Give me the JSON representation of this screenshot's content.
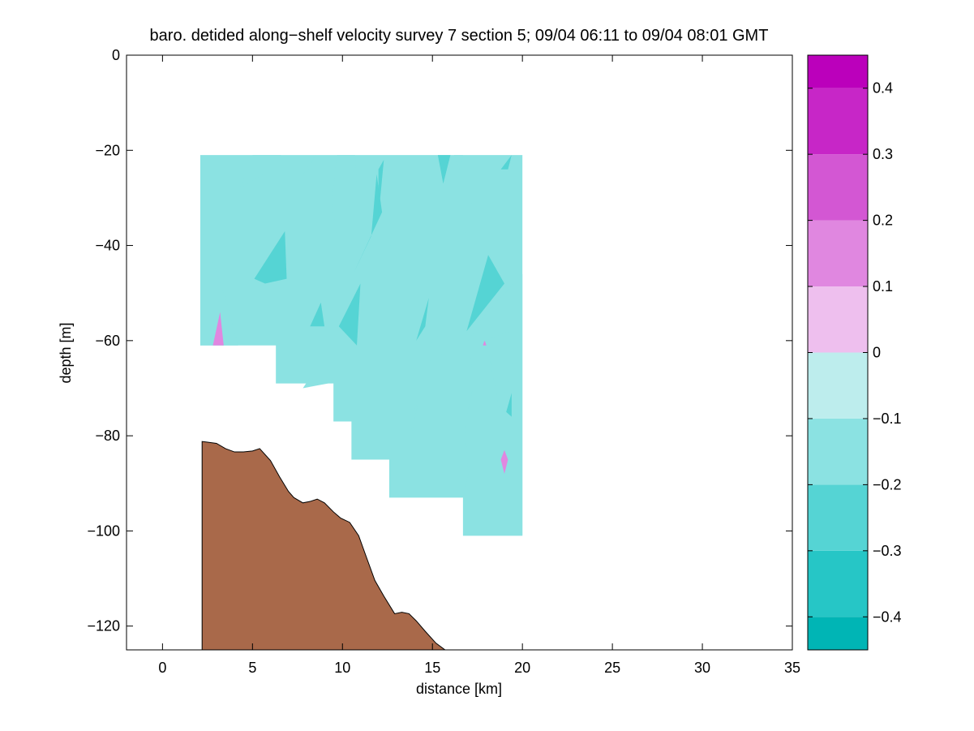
{
  "chart_data": {
    "type": "contour",
    "title": "baro. detided along−shelf velocity survey 7 section 5; 09/04 06:11 to 09/04 08:01 GMT",
    "xlabel": "distance [km]",
    "ylabel": "depth [m]",
    "xlim": [
      -2,
      35
    ],
    "ylim": [
      -125,
      0
    ],
    "xticks": [
      0,
      5,
      10,
      15,
      20,
      25,
      30,
      35
    ],
    "yticks": [
      0,
      -20,
      -40,
      -60,
      -80,
      -100,
      -120
    ],
    "grid": false,
    "colorbar": {
      "range": [
        -0.45,
        0.45
      ],
      "levels": [
        -0.45,
        -0.4,
        -0.3,
        -0.2,
        -0.1,
        0,
        0.1,
        0.2,
        0.3,
        0.4,
        0.45
      ],
      "colors": [
        "#00b5b5",
        "#26c6c6",
        "#55d4d4",
        "#8be2e2",
        "#bdeded",
        "#eebfee",
        "#e087e0",
        "#d357d3",
        "#c726c7",
        "#bb00bb"
      ],
      "ticks": [
        -0.4,
        -0.3,
        -0.2,
        -0.1,
        0,
        0.1,
        0.2,
        0.3,
        0.4
      ],
      "tick_labels": [
        "−0.4",
        "−0.3",
        "−0.2",
        "−0.1",
        "0",
        "0.1",
        "0.2",
        "0.3",
        "0.4"
      ]
    },
    "data_region": {
      "top_depth": -21,
      "bottom_profile": [
        [
          2.1,
          -61
        ],
        [
          6.3,
          -61
        ],
        [
          6.3,
          -69
        ],
        [
          9.5,
          -69
        ],
        [
          9.5,
          -77
        ],
        [
          10.5,
          -77
        ],
        [
          10.5,
          -85
        ],
        [
          12.6,
          -85
        ],
        [
          12.6,
          -93
        ],
        [
          16.7,
          -93
        ],
        [
          16.7,
          -101
        ],
        [
          20.0,
          -101
        ],
        [
          20.0,
          -21
        ]
      ]
    },
    "contour_patches": [
      {
        "level": -0.1,
        "polygon": [
          [
            2.1,
            -61
          ],
          [
            2.1,
            -36
          ],
          [
            3.5,
            -51
          ],
          [
            4.2,
            -61
          ]
        ]
      },
      {
        "level": -0.1,
        "polygon": [
          [
            16.7,
            -101
          ],
          [
            16.7,
            -93
          ],
          [
            17.0,
            -88
          ],
          [
            16.8,
            -78
          ],
          [
            17.3,
            -69
          ],
          [
            17.0,
            -60
          ],
          [
            17.8,
            -55
          ],
          [
            20.0,
            -46
          ],
          [
            20.0,
            -101
          ]
        ]
      },
      {
        "level": -0.1,
        "polygon": [
          [
            5.0,
            -21
          ],
          [
            6.6,
            -21
          ],
          [
            5.6,
            -25
          ],
          [
            4.3,
            -28
          ]
        ]
      },
      {
        "level": -0.1,
        "polygon": [
          [
            9.7,
            -21
          ],
          [
            10.7,
            -21
          ],
          [
            10.8,
            -28
          ],
          [
            9.7,
            -38
          ],
          [
            9.4,
            -31
          ]
        ]
      },
      {
        "level": -0.1,
        "polygon": [
          [
            13.0,
            -35
          ],
          [
            13.8,
            -37
          ],
          [
            13.0,
            -41
          ],
          [
            12.0,
            -38
          ]
        ]
      },
      {
        "level": -0.1,
        "polygon": [
          [
            7.8,
            -25
          ],
          [
            8.5,
            -21
          ],
          [
            8.1,
            -24
          ]
        ]
      },
      {
        "level": -0.1,
        "polygon": [
          [
            16.8,
            -38
          ],
          [
            17.2,
            -31
          ],
          [
            16.5,
            -36
          ]
        ]
      },
      {
        "level": -0.1,
        "polygon": [
          [
            16.2,
            -21
          ],
          [
            16.7,
            -21
          ],
          [
            16.5,
            -24
          ]
        ]
      },
      {
        "level": -0.1,
        "polygon": [
          [
            18.0,
            -60
          ],
          [
            19.2,
            -58
          ],
          [
            19.5,
            -66
          ],
          [
            18.7,
            -74
          ]
        ]
      },
      {
        "level": -0.1,
        "polygon": [
          [
            7.8,
            -70
          ],
          [
            8.5,
            -66
          ],
          [
            9.2,
            -69
          ]
        ]
      },
      {
        "level": -0.1,
        "polygon": [
          [
            14.5,
            -65
          ],
          [
            15.2,
            -58
          ],
          [
            15.5,
            -63
          ]
        ]
      },
      {
        "level": -0.1,
        "polygon": [
          [
            13.6,
            -77
          ],
          [
            14.2,
            -73
          ],
          [
            13.9,
            -79
          ]
        ]
      },
      {
        "level": -0.2,
        "polygon": [
          [
            5.1,
            -47
          ],
          [
            6.8,
            -37
          ],
          [
            6.9,
            -47
          ],
          [
            5.7,
            -48
          ]
        ]
      },
      {
        "level": -0.2,
        "polygon": [
          [
            10.6,
            -46
          ],
          [
            12.2,
            -33
          ],
          [
            11.9,
            -25
          ],
          [
            11.6,
            -38
          ]
        ]
      },
      {
        "level": -0.2,
        "polygon": [
          [
            12.0,
            -34
          ],
          [
            12.3,
            -22
          ],
          [
            12.0,
            -24
          ]
        ]
      },
      {
        "level": -0.2,
        "polygon": [
          [
            15.3,
            -21
          ],
          [
            16.0,
            -21
          ],
          [
            15.6,
            -27
          ]
        ]
      },
      {
        "level": -0.2,
        "polygon": [
          [
            8.2,
            -57
          ],
          [
            8.8,
            -52
          ],
          [
            9.0,
            -57
          ]
        ]
      },
      {
        "level": -0.2,
        "polygon": [
          [
            9.8,
            -57
          ],
          [
            11.0,
            -48
          ],
          [
            10.8,
            -61
          ]
        ]
      },
      {
        "level": -0.2,
        "polygon": [
          [
            14.1,
            -60
          ],
          [
            14.8,
            -51
          ],
          [
            14.6,
            -57
          ]
        ]
      },
      {
        "level": -0.2,
        "polygon": [
          [
            16.9,
            -58
          ],
          [
            18.1,
            -42
          ],
          [
            19.0,
            -48
          ]
        ]
      },
      {
        "level": -0.2,
        "polygon": [
          [
            18.8,
            -24
          ],
          [
            19.4,
            -21
          ],
          [
            19.2,
            -24
          ]
        ]
      },
      {
        "level": -0.2,
        "polygon": [
          [
            19.1,
            -75
          ],
          [
            19.4,
            -71
          ],
          [
            19.4,
            -76
          ]
        ]
      },
      {
        "level": 0.1,
        "polygon": [
          [
            2.8,
            -61
          ],
          [
            3.2,
            -54
          ],
          [
            3.4,
            -61
          ]
        ]
      },
      {
        "level": 0.1,
        "polygon": [
          [
            19.0,
            -83
          ],
          [
            19.2,
            -85
          ],
          [
            19.0,
            -88
          ],
          [
            18.8,
            -85
          ]
        ]
      },
      {
        "level": 0.1,
        "polygon": [
          [
            17.8,
            -61
          ],
          [
            17.9,
            -60
          ],
          [
            18.0,
            -61
          ]
        ]
      }
    ],
    "bathymetry": [
      [
        2.2,
        -81.2
      ],
      [
        3.0,
        -81.6
      ],
      [
        3.5,
        -82.7
      ],
      [
        4.0,
        -83.4
      ],
      [
        4.5,
        -83.4
      ],
      [
        5.0,
        -83.2
      ],
      [
        5.4,
        -82.7
      ],
      [
        6.0,
        -85.2
      ],
      [
        6.5,
        -88.6
      ],
      [
        7.0,
        -91.7
      ],
      [
        7.3,
        -93.0
      ],
      [
        7.8,
        -94.1
      ],
      [
        8.2,
        -93.8
      ],
      [
        8.6,
        -93.3
      ],
      [
        9.0,
        -94.1
      ],
      [
        9.5,
        -96.0
      ],
      [
        9.9,
        -97.3
      ],
      [
        10.4,
        -98.2
      ],
      [
        10.9,
        -101.0
      ],
      [
        11.3,
        -105.2
      ],
      [
        11.8,
        -110.4
      ],
      [
        12.3,
        -113.7
      ],
      [
        12.9,
        -117.4
      ],
      [
        13.3,
        -117.1
      ],
      [
        13.7,
        -117.4
      ],
      [
        14.1,
        -118.9
      ],
      [
        14.6,
        -121.1
      ],
      [
        15.2,
        -123.6
      ],
      [
        15.7,
        -125.0
      ]
    ],
    "colors": {
      "seafloor": "#a9694a",
      "background": "#ffffff"
    }
  }
}
